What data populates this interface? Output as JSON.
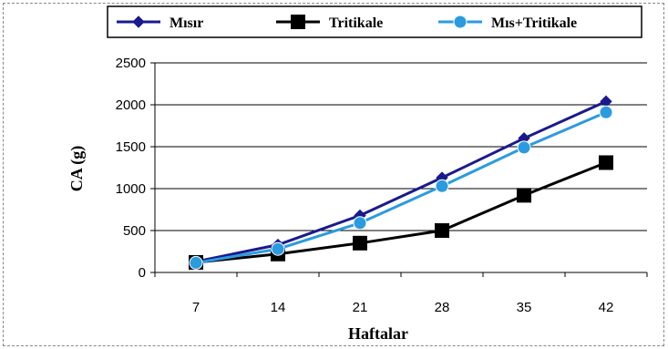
{
  "chart_data": {
    "type": "line",
    "title": "",
    "xlabel": "Haftalar",
    "ylabel": "CA (g)",
    "categories": [
      "7",
      "14",
      "21",
      "28",
      "35",
      "42"
    ],
    "ylim": [
      0,
      2500
    ],
    "yticks": [
      "0",
      "500",
      "1000",
      "1500",
      "2000",
      "2500"
    ],
    "grid": true,
    "legend": "top",
    "series": [
      {
        "name": "Mısır",
        "color": "#1a1a8c",
        "marker": "diamond",
        "values": [
          130,
          330,
          680,
          1130,
          1600,
          2040
        ]
      },
      {
        "name": "Tritikale",
        "color": "#000000",
        "marker": "square",
        "values": [
          120,
          220,
          350,
          500,
          920,
          1310
        ]
      },
      {
        "name": "Mıs+Tritikale",
        "color": "#2b9be0",
        "marker": "circle",
        "values": [
          115,
          280,
          590,
          1030,
          1490,
          1910
        ]
      }
    ]
  }
}
